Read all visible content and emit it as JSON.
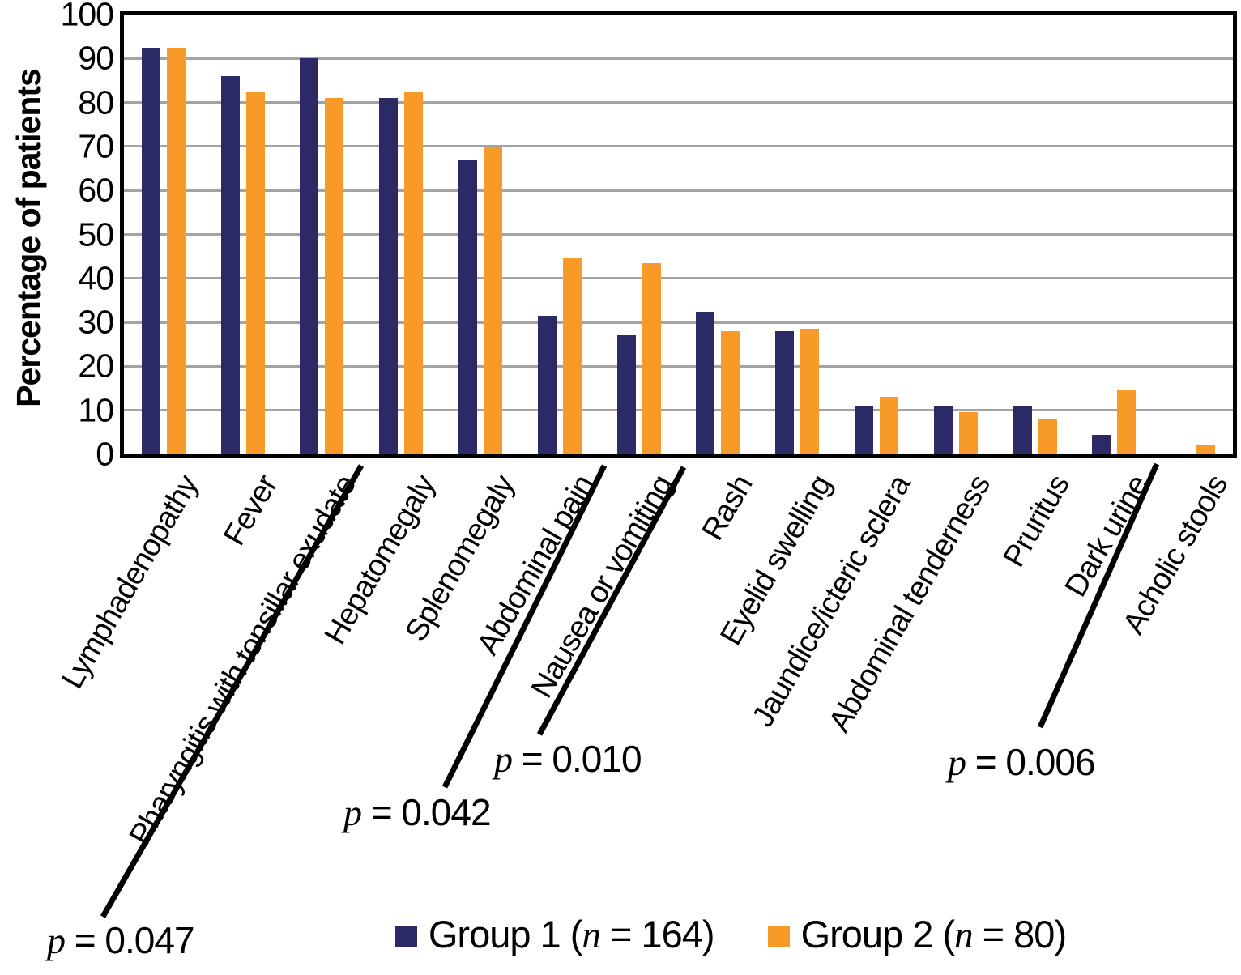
{
  "chart_data": {
    "type": "bar",
    "title": "",
    "xlabel": "",
    "ylabel": "Percentage of patients",
    "ylim": [
      0,
      100
    ],
    "ytick_step": 10,
    "grid": true,
    "legend_position": "bottom-center",
    "categories": [
      "Lymphadenopathy",
      "Fever",
      "Pharyngitis with tonsillar exudate",
      "Hepatomegaly",
      "Splenomegaly",
      "Abdominal pain",
      "Nausea or vomiting",
      "Rash",
      "Eyelid swelling",
      "Jaundice/icteric sclera",
      "Abdominal tenderness",
      "Pruritus",
      "Dark urine",
      "Acholic stools"
    ],
    "series": [
      {
        "name": "Group 1 (n = 164)",
        "color": "#2B2A66",
        "values": [
          92.5,
          86,
          90,
          81,
          67,
          31.5,
          27,
          32.5,
          28,
          11,
          11,
          11,
          4.5,
          0
        ]
      },
      {
        "name": "Group 2 (n = 80)",
        "color": "#F79A28",
        "values": [
          92.5,
          82.5,
          81,
          82.5,
          70,
          44.5,
          43.5,
          28,
          28.5,
          13,
          9.5,
          8,
          14.5,
          2
        ]
      }
    ],
    "p_annotations": [
      {
        "category": "Pharyngitis with tonsillar exudate",
        "label": "p = 0.047"
      },
      {
        "category": "Abdominal pain",
        "label": "p = 0.042"
      },
      {
        "category": "Nausea or vomiting",
        "label": "p = 0.010"
      },
      {
        "category": "Dark urine",
        "label": "p = 0.006"
      }
    ]
  },
  "p_values": [
    {
      "var": "p",
      "rest": " = 0.047"
    },
    {
      "var": "p",
      "rest": " = 0.042"
    },
    {
      "var": "p",
      "rest": " = 0.010"
    },
    {
      "var": "p",
      "rest": " = 0.006"
    }
  ],
  "legend": {
    "items": [
      {
        "pre": "Group 1 (",
        "n_var": "n",
        "post": " = 164)",
        "color": "#2B2A66"
      },
      {
        "pre": "Group 2 (",
        "n_var": "n",
        "post": " = 80)",
        "color": "#F79A28"
      }
    ]
  },
  "colors": {
    "group1": "#2B2A66",
    "group2": "#F79A28",
    "gridline": "#A3A3A3",
    "axis": "#000000"
  }
}
